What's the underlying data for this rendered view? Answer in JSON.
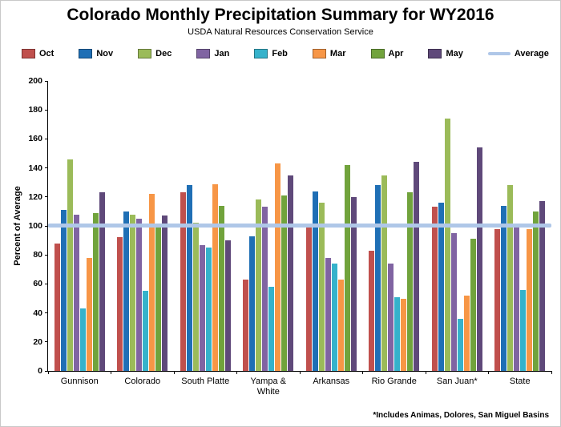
{
  "header": {
    "title": "Colorado Monthly Precipitation Summary for WY2016",
    "subtitle": "USDA Natural Resources Conservation Service"
  },
  "footnote": "*Includes Animas, Dolores, San Miguel Basins",
  "chart_data": {
    "type": "bar",
    "title": "Colorado Monthly Precipitation Summary for WY2016",
    "subtitle": "USDA Natural Resources Conservation Service",
    "xlabel": "",
    "ylabel": "Percent of Average",
    "ylim": [
      0,
      200
    ],
    "ytick_step": 20,
    "grid": false,
    "legend_position": "top",
    "categories": [
      "Gunnison",
      "Colorado",
      "South Platte",
      "Yampa & White",
      "Arkansas",
      "Rio Grande",
      "San Juan*",
      "State"
    ],
    "series": [
      {
        "name": "Oct",
        "color": "#C0504D",
        "values": [
          88,
          92,
          123,
          63,
          100,
          83,
          113,
          98
        ]
      },
      {
        "name": "Nov",
        "color": "#1F6FB5",
        "values": [
          111,
          110,
          128,
          93,
          124,
          128,
          116,
          114
        ]
      },
      {
        "name": "Dec",
        "color": "#9BBB59",
        "values": [
          146,
          108,
          102,
          118,
          116,
          135,
          174,
          128
        ]
      },
      {
        "name": "Jan",
        "color": "#8064A2",
        "values": [
          108,
          105,
          87,
          113,
          78,
          74,
          95,
          100
        ]
      },
      {
        "name": "Feb",
        "color": "#35B2CB",
        "values": [
          43,
          55,
          85,
          58,
          74,
          51,
          36,
          56
        ]
      },
      {
        "name": "Mar",
        "color": "#F79646",
        "values": [
          78,
          122,
          129,
          143,
          63,
          50,
          52,
          98
        ]
      },
      {
        "name": "Apr",
        "color": "#71A33C",
        "values": [
          109,
          100,
          114,
          121,
          142,
          123,
          91,
          110
        ]
      },
      {
        "name": "May",
        "color": "#5F497A",
        "values": [
          123,
          107,
          90,
          135,
          120,
          144,
          154,
          117
        ]
      }
    ],
    "average_line": {
      "name": "Average",
      "value": 100,
      "color": "#AFC7E8"
    }
  }
}
